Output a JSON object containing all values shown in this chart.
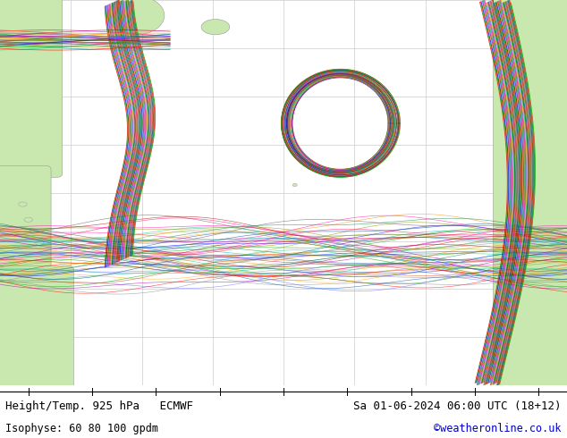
{
  "title_left": "Height/Temp. 925 hPa   ECMWF",
  "title_right": "Sa 01-06-2024 06:00 UTC (18+12)",
  "subtitle_left": "Isophyse: 60 80 100 gpdm",
  "subtitle_right": "©weatheronline.co.uk",
  "sea_color": "#e8e8e8",
  "land_color": "#c8e8b0",
  "bottom_bar_color": "#ffffff",
  "fig_width": 6.34,
  "fig_height": 4.9,
  "title_fontsize": 9,
  "subtitle_fontsize": 8.5,
  "copyright_color": "#0000cc",
  "title_color": "#000000",
  "grid_color": "#cccccc",
  "ensemble_colors": [
    "#ff0000",
    "#00aa00",
    "#0000ff",
    "#ff8800",
    "#aa00aa",
    "#00aaaa",
    "#888800",
    "#ff00aa",
    "#6666ff",
    "#ffaa00",
    "#00cc88",
    "#aa0000",
    "#0055aa",
    "#88aa00",
    "#ff0055",
    "#555555",
    "#888888",
    "#cc4400",
    "#004488",
    "#008844"
  ]
}
